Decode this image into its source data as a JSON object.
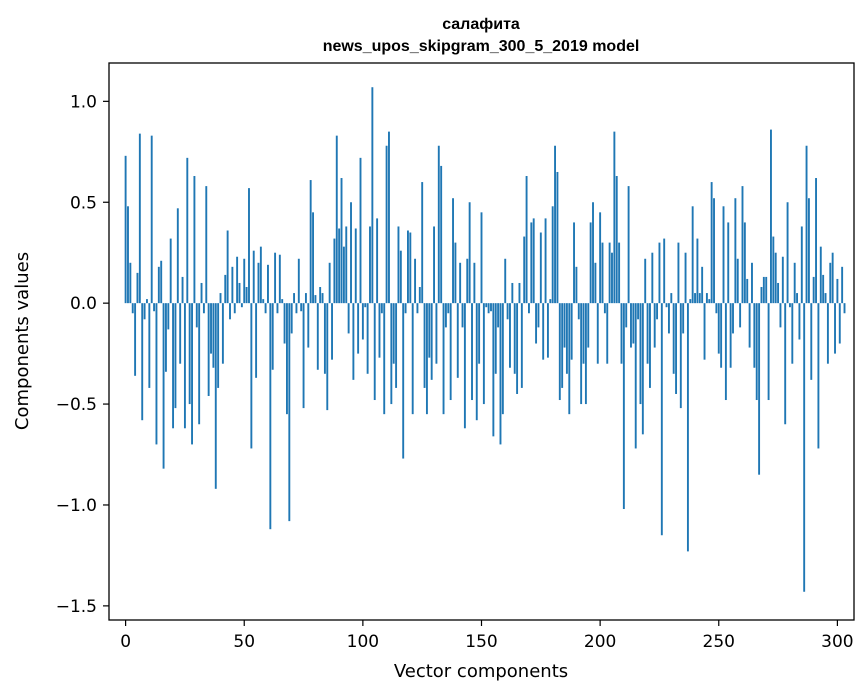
{
  "chart_data": {
    "type": "bar",
    "title": "салафита",
    "subtitle": "news_upos_skipgram_300_5_2019 model",
    "xlabel": "Vector components",
    "ylabel": "Components values",
    "xlim": [
      -7,
      307
    ],
    "ylim": [
      -1.57,
      1.19
    ],
    "x_ticks": [
      0,
      50,
      100,
      150,
      200,
      250,
      300
    ],
    "y_ticks": [
      1.0,
      0.5,
      0.0,
      -0.5,
      -1.0,
      -1.5
    ],
    "x_tick_labels": [
      "0",
      "50",
      "100",
      "150",
      "200",
      "250",
      "300"
    ],
    "y_tick_labels": [
      "1.0",
      "0.5",
      "0.0",
      "−0.5",
      "−1.0",
      "−1.5"
    ],
    "grid": false,
    "bar_color": "#1f77b4",
    "values": [
      0.73,
      0.48,
      0.2,
      -0.05,
      -0.36,
      0.15,
      0.84,
      -0.58,
      -0.08,
      0.02,
      -0.42,
      0.83,
      -0.04,
      -0.7,
      0.18,
      0.21,
      -0.82,
      -0.34,
      -0.13,
      0.32,
      -0.62,
      -0.52,
      0.47,
      -0.3,
      0.13,
      -0.62,
      0.72,
      -0.5,
      -0.7,
      0.63,
      -0.12,
      -0.6,
      0.1,
      -0.05,
      0.58,
      -0.46,
      -0.25,
      -0.32,
      -0.92,
      -0.42,
      0.05,
      -0.3,
      0.14,
      0.36,
      -0.08,
      0.18,
      -0.05,
      0.23,
      0.1,
      -0.02,
      0.22,
      0.08,
      0.57,
      -0.72,
      0.26,
      -0.37,
      0.2,
      0.28,
      0.02,
      -0.05,
      0.19,
      -1.12,
      -0.33,
      0.25,
      -0.05,
      0.24,
      0.02,
      -0.2,
      -0.55,
      -1.08,
      -0.15,
      0.05,
      -0.05,
      0.22,
      -0.04,
      -0.52,
      0.05,
      -0.22,
      0.61,
      0.45,
      0.04,
      -0.33,
      0.08,
      0.05,
      -0.35,
      -0.53,
      0.2,
      -0.28,
      0.32,
      0.83,
      0.37,
      0.62,
      0.28,
      0.38,
      -0.15,
      0.5,
      -0.38,
      0.37,
      -0.25,
      0.72,
      -0.18,
      -0.02,
      -0.35,
      0.38,
      1.07,
      -0.48,
      0.42,
      -0.27,
      -0.05,
      -0.55,
      0.78,
      0.85,
      -0.5,
      -0.3,
      -0.42,
      0.38,
      0.26,
      -0.77,
      -0.05,
      0.36,
      0.35,
      -0.55,
      0.22,
      -0.05,
      0.08,
      0.6,
      -0.42,
      -0.55,
      -0.27,
      -0.38,
      0.38,
      -0.3,
      0.78,
      0.68,
      -0.55,
      -0.12,
      -0.05,
      -0.48,
      0.52,
      0.3,
      -0.37,
      0.2,
      -0.12,
      -0.62,
      0.22,
      0.5,
      -0.48,
      0.2,
      -0.58,
      -0.3,
      0.45,
      -0.5,
      -0.02,
      -0.05,
      -0.04,
      -0.66,
      -0.35,
      -0.12,
      -0.7,
      -0.55,
      0.22,
      -0.08,
      -0.32,
      0.1,
      -0.35,
      -0.45,
      0.1,
      -0.42,
      0.33,
      0.63,
      -0.05,
      0.4,
      0.42,
      -0.2,
      -0.12,
      0.35,
      -0.28,
      0.42,
      -0.27,
      0.02,
      0.48,
      0.78,
      0.65,
      -0.48,
      -0.42,
      -0.22,
      -0.35,
      -0.55,
      -0.28,
      0.4,
      0.18,
      -0.08,
      -0.5,
      -0.3,
      -0.5,
      -0.22,
      0.4,
      0.5,
      0.2,
      -0.3,
      0.45,
      0.3,
      -0.05,
      -0.3,
      0.3,
      0.25,
      0.85,
      0.63,
      0.3,
      -0.3,
      -1.02,
      -0.12,
      0.58,
      -0.22,
      -0.2,
      -0.72,
      -0.08,
      -0.5,
      -0.65,
      0.22,
      -0.3,
      -0.42,
      0.25,
      -0.22,
      -0.08,
      0.3,
      -1.15,
      0.32,
      -0.02,
      -0.15,
      0.05,
      -0.35,
      -0.45,
      0.3,
      -0.52,
      -0.15,
      0.25,
      -1.23,
      0.02,
      0.48,
      0.05,
      0.32,
      0.05,
      0.18,
      -0.28,
      0.05,
      0.02,
      0.6,
      0.52,
      -0.05,
      -0.25,
      -0.32,
      0.48,
      -0.48,
      0.4,
      -0.32,
      -0.15,
      0.52,
      0.22,
      -0.12,
      0.58,
      0.4,
      0.12,
      -0.22,
      0.2,
      -0.32,
      -0.48,
      -0.85,
      0.08,
      0.13,
      0.13,
      -0.48,
      0.86,
      0.33,
      0.25,
      0.1,
      -0.12,
      0.23,
      -0.6,
      0.5,
      -0.02,
      -0.3,
      0.2,
      0.05,
      -0.18,
      0.38,
      -1.43,
      0.78,
      0.52,
      -0.38,
      0.13,
      0.62,
      -0.72,
      0.28,
      0.14,
      0.05,
      -0.3,
      0.2,
      0.25,
      -0.25,
      0.12,
      -0.2,
      0.18,
      -0.05
    ]
  }
}
